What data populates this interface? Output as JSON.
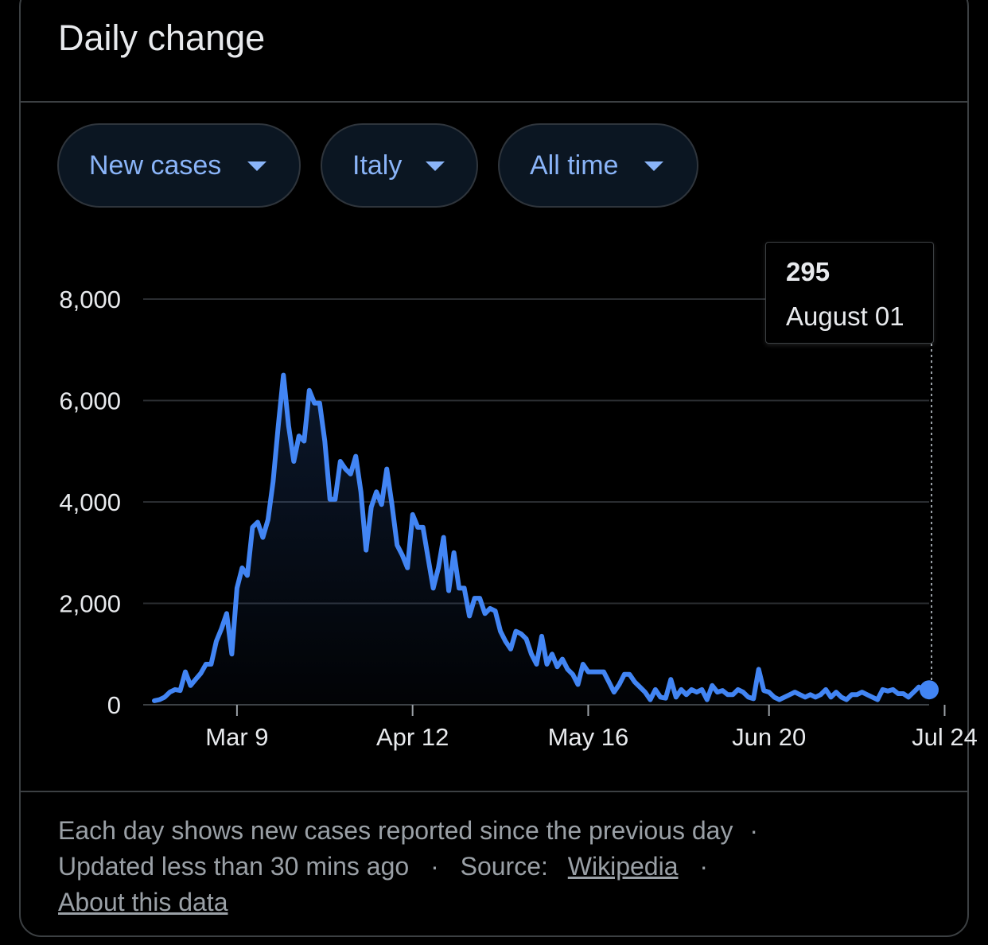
{
  "header": {
    "title": "Daily change"
  },
  "filters": {
    "metric": "New cases",
    "location": "Italy",
    "range": "All time"
  },
  "tooltip": {
    "value": "295",
    "date": "August 01"
  },
  "colors": {
    "line": "#4285f4",
    "accent": "#8ab4f8",
    "grid": "#2a2d31",
    "text": "#e8eaed",
    "muted": "#9aa0a6"
  },
  "chart_data": {
    "type": "line",
    "title": "",
    "xlabel": "",
    "ylabel": "",
    "ylim": [
      0,
      8000
    ],
    "yticks": [
      "0",
      "2,000",
      "4,000",
      "6,000",
      "8,000"
    ],
    "xticks": [
      "Mar 9",
      "Apr 12",
      "May 16",
      "Jun 20",
      "Jul 24"
    ],
    "x_start": "2020-02-22",
    "x_end": "2020-08-01",
    "series": [
      {
        "name": "New cases",
        "values": [
          80,
          100,
          150,
          250,
          300,
          280,
          650,
          380,
          500,
          620,
          800,
          800,
          1250,
          1500,
          1800,
          1000,
          2300,
          2700,
          2550,
          3500,
          3600,
          3300,
          3650,
          4400,
          5500,
          6500,
          5500,
          4800,
          5300,
          5200,
          6200,
          5950,
          5950,
          5200,
          4050,
          4050,
          4800,
          4650,
          4550,
          4900,
          4200,
          3050,
          3900,
          4200,
          3950,
          4650,
          3950,
          3150,
          2950,
          2700,
          3750,
          3500,
          3500,
          2900,
          2300,
          2700,
          3300,
          2250,
          3000,
          2300,
          2300,
          1750,
          2100,
          2100,
          1800,
          1900,
          1850,
          1450,
          1250,
          1100,
          1450,
          1400,
          1300,
          1000,
          800,
          1350,
          800,
          1000,
          750,
          900,
          700,
          600,
          400,
          800,
          650,
          650,
          650,
          650,
          450,
          250,
          400,
          600,
          600,
          450,
          350,
          250,
          100,
          300,
          150,
          130,
          500,
          150,
          300,
          200,
          300,
          250,
          300,
          100,
          380,
          250,
          280,
          200,
          200,
          300,
          250,
          150,
          120,
          700,
          280,
          250,
          150,
          100,
          150,
          200,
          250,
          200,
          150,
          200,
          150,
          200,
          300,
          150,
          250,
          150,
          100,
          200,
          200,
          250,
          200,
          150,
          100,
          300,
          270,
          300,
          220,
          220,
          150,
          250,
          350,
          300,
          295
        ]
      }
    ]
  },
  "footer": {
    "line1": "Each day shows new cases reported since the previous day",
    "updated": "Updated less than 30 mins ago",
    "source_label": "Source:",
    "source_link": "Wikipedia",
    "about": "About this data",
    "separator": "·"
  }
}
